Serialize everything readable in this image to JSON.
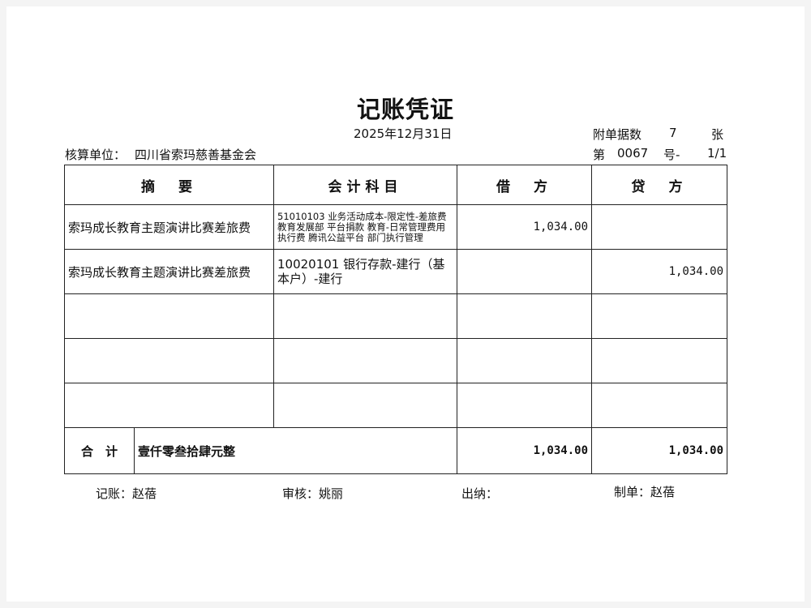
{
  "title": "记账凭证",
  "date": "2025年12月31日",
  "attachments": {
    "label": "附单据数",
    "count": "7",
    "unit": "张"
  },
  "voucher": {
    "prefix": "第",
    "number": "0067",
    "suffix": "号-",
    "page": "1/1"
  },
  "entity": {
    "label": "核算单位：",
    "value": "四川省索玛慈善基金会"
  },
  "columns": [
    "摘　要",
    "会计科目",
    "借　方",
    "贷　方"
  ],
  "rows": [
    {
      "summary": "索玛成长教育主题演讲比赛差旅费",
      "account": "51010103 业务活动成本-限定性-差旅费 教育发展部 平台捐款 教育-日常管理费用 执行费 腾讯公益平台 部门执行管理",
      "debit": "1,034.00",
      "credit": ""
    },
    {
      "summary": "索玛成长教育主题演讲比赛差旅费",
      "account": "10020101 银行存款-建行（基本户）-建行",
      "debit": "",
      "credit": "1,034.00"
    },
    {
      "summary": "",
      "account": "",
      "debit": "",
      "credit": ""
    },
    {
      "summary": "",
      "account": "",
      "debit": "",
      "credit": ""
    },
    {
      "summary": "",
      "account": "",
      "debit": "",
      "credit": ""
    }
  ],
  "total": {
    "label": "合　计",
    "amount_words": "壹仟零叁拾肆元整",
    "debit": "1,034.00",
    "credit": "1,034.00"
  },
  "footer": {
    "bookkeeper": "记账：赵蓓",
    "reviewer": "审核：姚丽",
    "cashier": "出纳：",
    "preparer": "制单：赵蓓"
  }
}
